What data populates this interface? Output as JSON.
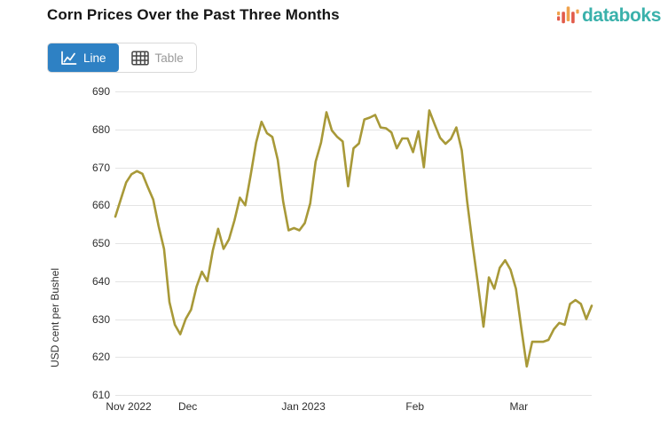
{
  "header": {
    "title": "Corn Prices Over the Past Three Months",
    "logo_text": "databoks",
    "logo_colors": {
      "text": "#3ab1ab",
      "red": "#e25b4a",
      "orange": "#f0a24c"
    }
  },
  "toolbar": {
    "line_label": "Line",
    "table_label": "Table",
    "active_view": "Line",
    "active_color": "#2e81c4"
  },
  "chart_data": {
    "type": "line",
    "title": "Corn Prices Over the Past Three Months",
    "xlabel": "",
    "ylabel": "USD cent per Bushel",
    "ylim": [
      610,
      690
    ],
    "y_ticks": [
      690,
      680,
      670,
      660,
      650,
      640,
      630,
      620,
      610
    ],
    "x_ticks": [
      {
        "label": "Nov 2022",
        "pos": 0.028
      },
      {
        "label": "Dec",
        "pos": 0.152
      },
      {
        "label": "Jan 2023",
        "pos": 0.395
      },
      {
        "label": "Feb",
        "pos": 0.629
      },
      {
        "label": "Mar",
        "pos": 0.847
      }
    ],
    "grid": true,
    "legend": false,
    "line_color": "#a89938",
    "gridline_color": "#e4e4e4",
    "values": [
      657,
      661.5,
      666,
      668.2,
      669,
      668.3,
      664.8,
      661.5,
      654.5,
      648.5,
      634.5,
      628.5,
      626,
      630,
      632.5,
      638.5,
      642.5,
      640,
      648,
      653.8,
      648.5,
      651,
      656,
      662,
      660,
      668,
      676.5,
      682,
      679,
      678,
      672,
      661,
      653.4,
      654,
      653.4,
      655.3,
      660.5,
      671.5,
      676.5,
      684.5,
      679.7,
      678,
      676.8,
      665,
      675,
      676.3,
      682.6,
      683.1,
      683.8,
      680.5,
      680.3,
      679.2,
      675,
      677.6,
      677.6,
      674,
      679.5,
      670,
      685,
      681.3,
      677.8,
      676.2,
      677.5,
      680.5,
      674.5,
      661,
      649.5,
      639,
      628,
      641,
      638,
      643.5,
      645.5,
      643,
      638,
      627.5,
      617.5,
      624,
      624,
      624,
      624.5,
      627.3,
      629,
      628.5,
      634,
      635,
      634,
      630,
      633.5
    ]
  }
}
